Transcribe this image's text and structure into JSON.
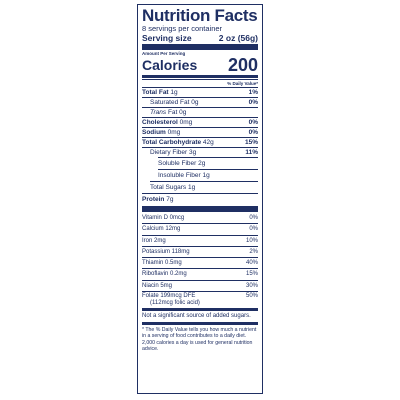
{
  "label": {
    "title": "Nutrition Facts",
    "servings": "8 servings per container",
    "serving_size_label": "Serving size",
    "serving_size_value": "2 oz (56g)",
    "amount_per_serving": "Amount Per Serving",
    "calories_label": "Calories",
    "calories_value": "200",
    "dv_header": "% Daily Value*",
    "nutrients": [
      {
        "name": "Total Fat",
        "amount": "1g",
        "dv": "1%"
      },
      {
        "name": "Saturated Fat",
        "amount": "0g",
        "dv": "0%"
      },
      {
        "name": "Trans",
        "name2": "Fat",
        "amount": "0g",
        "dv": ""
      },
      {
        "name": "Cholesterol",
        "amount": "0mg",
        "dv": "0%"
      },
      {
        "name": "Sodium",
        "amount": "0mg",
        "dv": "0%"
      },
      {
        "name": "Total Carbohydrate",
        "amount": "42g",
        "dv": "15%"
      },
      {
        "name": "Dietary Fiber",
        "amount": "3g",
        "dv": "11%"
      },
      {
        "name": "Soluble Fiber",
        "amount": "2g",
        "dv": ""
      },
      {
        "name": "Insoluble Fiber",
        "amount": "1g",
        "dv": ""
      },
      {
        "name": "Total Sugars",
        "amount": "1g",
        "dv": ""
      },
      {
        "name": "Protein",
        "amount": "7g",
        "dv": ""
      }
    ],
    "vitamins": [
      {
        "name": "Vitamin D 0mcg",
        "dv": "0%"
      },
      {
        "name": "Calcium 12mg",
        "dv": "0%"
      },
      {
        "name": "Iron 2mg",
        "dv": "10%"
      },
      {
        "name": "Potassium 118mg",
        "dv": "2%"
      },
      {
        "name": "Thiamin 0.5mg",
        "dv": "40%"
      },
      {
        "name": "Riboflavin 0.2mg",
        "dv": "15%"
      },
      {
        "name": "Niacin 5mg",
        "dv": "30%"
      }
    ],
    "folate_line1": "Folate 199mcg DFE",
    "folate_dv": "50%",
    "folate_line2": "(112mcg folic acid)",
    "added_sugars_note": "Not a significant source of added sugars.",
    "footnote": "* The % Daily Value tells you how much a nutrient in a serving of food contributes to a daily diet. 2,000 calories a day is used for general nutrition advice.",
    "ink_color": "#1f2f63"
  }
}
